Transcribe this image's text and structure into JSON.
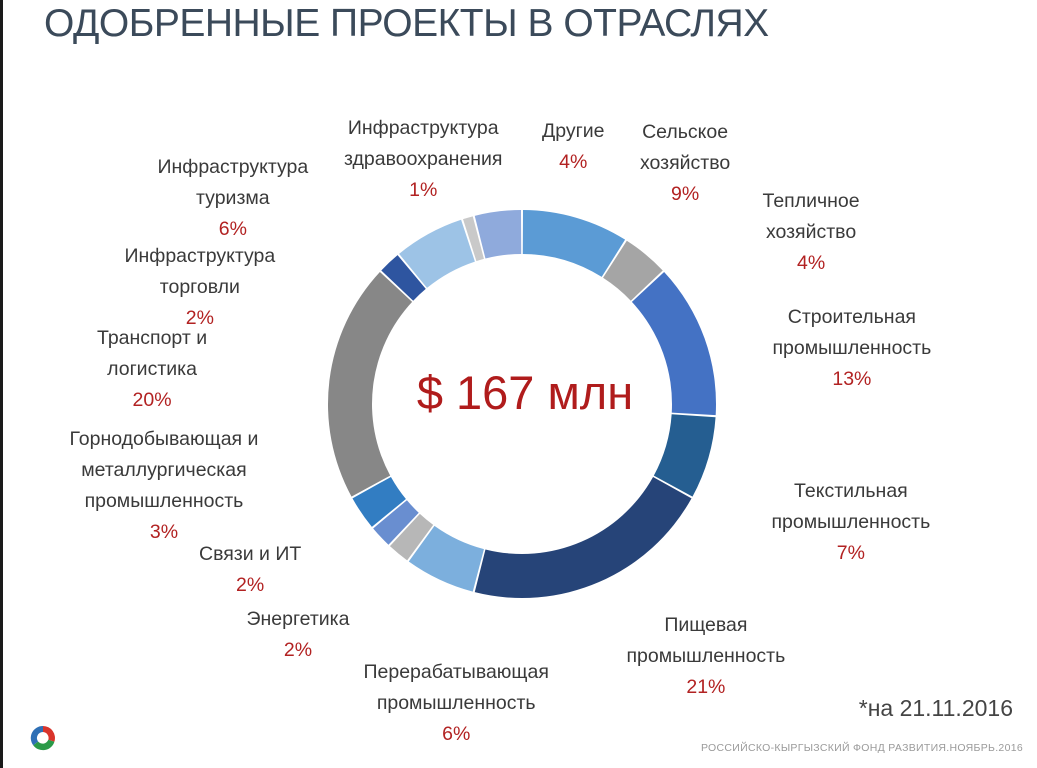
{
  "title": "ОДОБРЕННЫЕ ПРОЕКТЫ В ОТРАСЛЯХ",
  "date_note": "*на 21.11.2016",
  "footer": "РОССИЙСКО-КЫРГЫЗСКИЙ ФОНД РАЗВИТИЯ.НОЯБРЬ.2016",
  "chart_data": {
    "type": "pie",
    "subtype": "donut",
    "center_label": "$ 167 млн",
    "slices": [
      {
        "name": "Сельское хозяйство",
        "name_lines": [
          "Сельское",
          "хозяйство"
        ],
        "value": 9,
        "label": "9%",
        "color": "#5b9bd5"
      },
      {
        "name": "Тепличное хозяйство",
        "name_lines": [
          "Тепличное",
          "хозяйство"
        ],
        "value": 4,
        "label": "4%",
        "color": "#a5a5a5"
      },
      {
        "name": "Строительная промышленность",
        "name_lines": [
          "Строительная",
          "промышленность"
        ],
        "value": 13,
        "label": "13%",
        "color": "#4472c4"
      },
      {
        "name": "Текстильная промышленность",
        "name_lines": [
          "Текстильная",
          "промышленность"
        ],
        "value": 7,
        "label": "7%",
        "color": "#255e91"
      },
      {
        "name": "Пищевая промышленность",
        "name_lines": [
          "Пищевая",
          "промышленность"
        ],
        "value": 21,
        "label": "21%",
        "color": "#264478"
      },
      {
        "name": "Перерабатывающая промышленность",
        "name_lines": [
          "Перерабатывающая",
          "промышленность"
        ],
        "value": 6,
        "label": "6%",
        "color": "#7cafdd"
      },
      {
        "name": "Энергетика",
        "name_lines": [
          "Энергетика"
        ],
        "value": 2,
        "label": "2%",
        "color": "#b7b7b7"
      },
      {
        "name": "Связи и ИТ",
        "name_lines": [
          "Связи и ИТ"
        ],
        "value": 2,
        "label": "2%",
        "color": "#698ed0"
      },
      {
        "name": "Горнодобывающая и металлургическая промышленность",
        "name_lines": [
          "Горнодобывающая и",
          "металлургическая",
          "промышленность"
        ],
        "value": 3,
        "label": "3%",
        "color": "#327dc2"
      },
      {
        "name": "Транспорт и логистика",
        "name_lines": [
          "Транспорт и",
          "логистика"
        ],
        "value": 20,
        "label": "20%",
        "color": "#878787"
      },
      {
        "name": "Инфраструктура торговли",
        "name_lines": [
          "Инфраструктура",
          "торговли"
        ],
        "value": 2,
        "label": "2%",
        "color": "#2e55a0"
      },
      {
        "name": "Инфраструктура туризма",
        "name_lines": [
          "Инфраструктура",
          "туризма"
        ],
        "value": 6,
        "label": "6%",
        "color": "#9dc3e6"
      },
      {
        "name": "Инфраструктура здравоохранения",
        "name_lines": [
          "Инфраструктура",
          "здравоохранения"
        ],
        "value": 1,
        "label": "1%",
        "color": "#c9c9c9"
      },
      {
        "name": "Другие",
        "name_lines": [
          "Другие"
        ],
        "value": 4,
        "label": "4%",
        "color": "#8faadc"
      }
    ]
  }
}
